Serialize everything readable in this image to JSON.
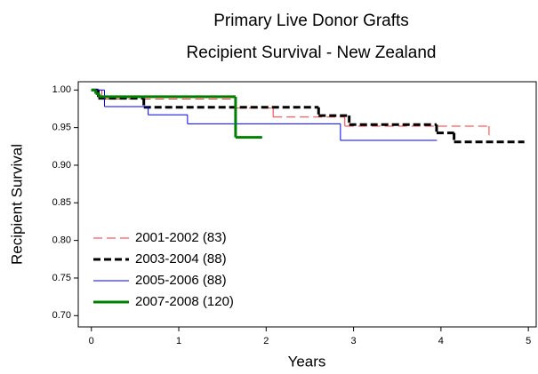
{
  "chart_data": {
    "type": "step",
    "title": "Primary Live Donor Grafts",
    "subtitle": "Recipient Survival  -  New Zealand",
    "x_label": "Years",
    "y_label": "Recipient Survival",
    "xlim": [
      -0.15,
      5.09
    ],
    "ylim": [
      0.685,
      1.011
    ],
    "xticks": [
      0,
      1,
      2,
      3,
      4,
      5
    ],
    "yticks": [
      {
        "value": 0.7,
        "label": "0.70"
      },
      0.75,
      {
        "value": 0.8,
        "label": "0.80"
      },
      0.85,
      {
        "value": 0.9,
        "label": "0.90"
      },
      0.95,
      {
        "value": 1,
        "label": "1.00"
      }
    ],
    "legend": "lower left",
    "series": [
      {
        "name": "2001-2002 (83)",
        "color": "#ff3333",
        "dash": "dashed",
        "width": 1,
        "x": [
          0,
          0.12,
          1.65,
          2.08,
          2.9,
          4.55
        ],
        "values": [
          1.0,
          0.988,
          0.976,
          0.964,
          0.952,
          0.94
        ]
      },
      {
        "name": "2003-2004 (88)",
        "color": "#000000",
        "dash": "dashed",
        "width": 3,
        "x": [
          0,
          0.08,
          0.6,
          2.6,
          2.95,
          3.95,
          4.15,
          4.95
        ],
        "values": [
          1.0,
          0.989,
          0.977,
          0.966,
          0.954,
          0.943,
          0.931,
          0.931
        ]
      },
      {
        "name": "2005-2006 (88)",
        "color": "#0000ff",
        "dash": "solid",
        "width": 1,
        "x": [
          0,
          0.15,
          0.65,
          1.1,
          2.85,
          3.95
        ],
        "values": [
          1.0,
          0.978,
          0.967,
          0.955,
          0.933,
          0.933
        ]
      },
      {
        "name": "2007-2008 (120)",
        "color": "#008000",
        "dash": "solid",
        "width": 3,
        "x": [
          0,
          0.05,
          0.09,
          1.65,
          1.95
        ],
        "values": [
          1.0,
          0.995,
          0.991,
          0.937,
          0.937
        ]
      }
    ]
  }
}
